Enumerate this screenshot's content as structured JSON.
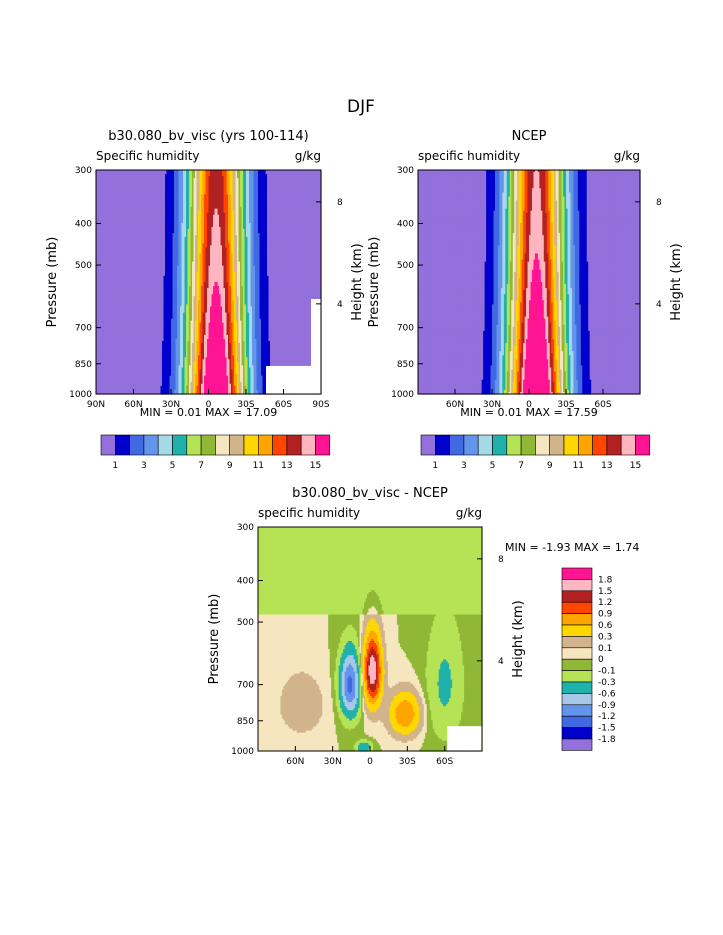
{
  "page_title": "DJF",
  "colors": {
    "ramp_fill": [
      "#9370db",
      "#0000cd",
      "#4169e1",
      "#6495ed",
      "#a7d8e8",
      "#20b2aa",
      "#b6e356",
      "#90b836",
      "#f5e6c0",
      "#d2b48c",
      "#ffd700",
      "#ffa500",
      "#ff4500",
      "#b22222",
      "#ffb6c1",
      "#ff1493"
    ],
    "diff_fill": [
      "#9370db",
      "#0000cd",
      "#4169e1",
      "#6495ed",
      "#a7c8e8",
      "#20b2aa",
      "#b6e356",
      "#90b836",
      "#f5e6c0",
      "#d2b48c",
      "#ffd700",
      "#ffa500",
      "#ff4500",
      "#b22222",
      "#ffb6c1",
      "#ff1493"
    ]
  },
  "chart_data": [
    {
      "type": "heatmap",
      "id": "model",
      "title": "b30.080_bv_visc (yrs 100-114)",
      "subtitle_left": "Specific humidity",
      "units": "g/kg",
      "ylabel": "Pressure (mb)",
      "ylabel_right": "Height (km)",
      "x_ticks": [
        "90N",
        "60N",
        "30N",
        "0",
        "30S",
        "60S",
        "90S"
      ],
      "x_values": [
        90,
        60,
        30,
        0,
        -30,
        -60,
        -90
      ],
      "y_ticks": [
        "300",
        "400",
        "500",
        "700",
        "850",
        "1000"
      ],
      "y_values": [
        300,
        400,
        500,
        700,
        850,
        1000
      ],
      "y_right_ticks": [
        "8",
        "4"
      ],
      "xlim": [
        90,
        -90
      ],
      "ylim": [
        300,
        1000
      ],
      "min_label": "MIN =   0.01",
      "max_label": "MAX =   17.09",
      "stats": {
        "min": 0.01,
        "max": 17.09
      },
      "levels": [
        1,
        2,
        3,
        4,
        5,
        6,
        7,
        8,
        9,
        10,
        11,
        12,
        13,
        14,
        15
      ],
      "colorbar_labels": [
        "1",
        "3",
        "5",
        "7",
        "9",
        "11",
        "13",
        "15"
      ]
    },
    {
      "type": "heatmap",
      "id": "obs",
      "title": "NCEP",
      "subtitle_left": "specific humidity",
      "units": "g/kg",
      "ylabel": "Pressure (mb)",
      "ylabel_right": "Height (km)",
      "x_ticks": [
        "60N",
        "30N",
        "0",
        "30S",
        "60S"
      ],
      "x_values": [
        60,
        30,
        0,
        -30,
        -60
      ],
      "y_ticks": [
        "300",
        "400",
        "500",
        "700",
        "850",
        "1000"
      ],
      "y_values": [
        300,
        400,
        500,
        700,
        850,
        1000
      ],
      "y_right_ticks": [
        "8",
        "4"
      ],
      "xlim": [
        90,
        -90
      ],
      "ylim": [
        300,
        1000
      ],
      "min_label": "MIN =   0.01",
      "max_label": "MAX =   17.59",
      "stats": {
        "min": 0.01,
        "max": 17.59
      },
      "levels": [
        1,
        2,
        3,
        4,
        5,
        6,
        7,
        8,
        9,
        10,
        11,
        12,
        13,
        14,
        15
      ],
      "colorbar_labels": [
        "1",
        "3",
        "5",
        "7",
        "9",
        "11",
        "13",
        "15"
      ]
    },
    {
      "type": "heatmap",
      "id": "diff",
      "title": "b30.080_bv_visc - NCEP",
      "subtitle_left": "specific humidity",
      "units": "g/kg",
      "ylabel": "Pressure (mb)",
      "ylabel_right": "Height (km)",
      "x_ticks": [
        "60N",
        "30N",
        "0",
        "30S",
        "60S"
      ],
      "x_values": [
        60,
        30,
        0,
        -30,
        -60
      ],
      "y_ticks": [
        "300",
        "400",
        "500",
        "700",
        "850",
        "1000"
      ],
      "y_values": [
        300,
        400,
        500,
        700,
        850,
        1000
      ],
      "y_right_ticks": [
        "8",
        "4"
      ],
      "xlim": [
        90,
        -90
      ],
      "ylim": [
        300,
        1000
      ],
      "min_label": "MIN =   -1.93",
      "max_label": "MAX =    1.74",
      "stats": {
        "min": -1.93,
        "max": 1.74
      },
      "levels": [
        -1.8,
        -1.5,
        -1.2,
        -0.9,
        -0.6,
        -0.3,
        -0.1,
        0,
        0.1,
        0.3,
        0.6,
        0.9,
        1.2,
        1.5,
        1.8
      ],
      "colorbar_labels": [
        "1.8",
        "1.5",
        "1.2",
        "0.9",
        "0.6",
        "0.3",
        "0.1",
        "0",
        "-0.1",
        "-0.3",
        "-0.6",
        "-0.9",
        "-1.2",
        "-1.5",
        "-1.8"
      ]
    }
  ]
}
